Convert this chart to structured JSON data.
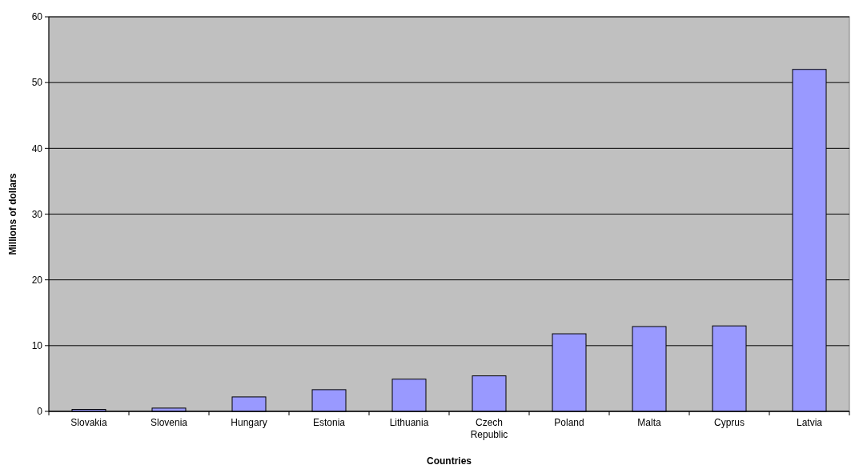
{
  "chart_data": {
    "type": "bar",
    "xlabel": "Countries",
    "ylabel": "Millions of dollars",
    "categories": [
      "Slovakia",
      "Slovenia",
      "Hungary",
      "Estonia",
      "Lithuania",
      "Czech Republic",
      "Poland",
      "Malta",
      "Cyprus",
      "Latvia"
    ],
    "values": [
      0.3,
      0.5,
      2.2,
      3.3,
      4.9,
      5.4,
      11.8,
      12.9,
      13,
      52
    ],
    "color": "#9999ff",
    "ylim": [
      0,
      60
    ],
    "yticks": [
      0,
      10,
      20,
      30,
      40,
      50,
      60
    ],
    "grid": "y"
  }
}
